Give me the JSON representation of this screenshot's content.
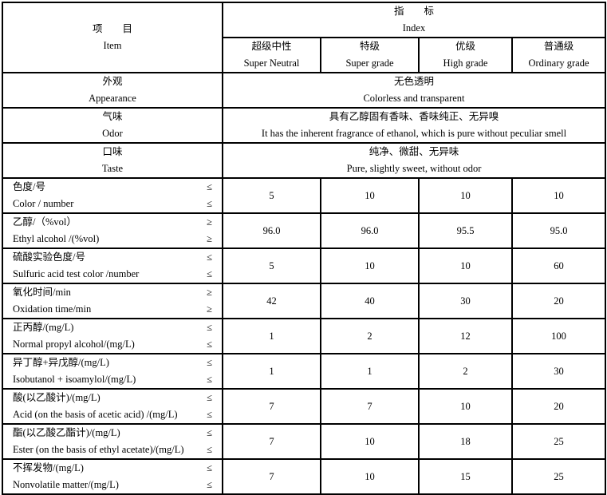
{
  "header": {
    "item_cn": "项　　目",
    "item_en": "Item",
    "index_cn": "指　　标",
    "index_en": "Index",
    "grades": [
      {
        "cn": "超级中性",
        "en": "Super Neutral"
      },
      {
        "cn": "特级",
        "en": "Super grade"
      },
      {
        "cn": "优级",
        "en": "High grade"
      },
      {
        "cn": "普通级",
        "en": "Ordinary grade"
      }
    ]
  },
  "merged_rows": [
    {
      "cn": "外观",
      "en": "Appearance",
      "value_cn": "无色透明",
      "value_en": "Colorless and transparent"
    },
    {
      "cn": "气味",
      "en": "Odor",
      "value_cn": "具有乙醇固有香味、香味纯正、无异嗅",
      "value_en": "It has the inherent fragrance of ethanol, which is pure without peculiar smell"
    },
    {
      "cn": "口味",
      "en": "Taste",
      "value_cn": "纯净、微甜、无异味",
      "value_en": "Pure, slightly sweet, without odor"
    }
  ],
  "rows": [
    {
      "cn": "色度/号",
      "en": "Color / number",
      "op": "≤",
      "values": [
        "5",
        "10",
        "10",
        "10"
      ]
    },
    {
      "cn": "乙醇/（%vol）",
      "en": "Ethyl alcohol /(%vol)",
      "op": "≥",
      "values": [
        "96.0",
        "96.0",
        "95.5",
        "95.0"
      ]
    },
    {
      "cn": "硫酸实验色度/号",
      "en": "Sulfuric acid test color /number",
      "op": "≤",
      "values": [
        "5",
        "10",
        "10",
        "60"
      ]
    },
    {
      "cn": "氧化时间/min",
      "en": "Oxidation time/min",
      "op": "≥",
      "values": [
        "42",
        "40",
        "30",
        "20"
      ]
    },
    {
      "cn": "正丙醇/(mg/L)",
      "en": "Normal propyl alcohol/(mg/L)",
      "op": "≤",
      "values": [
        "1",
        "2",
        "12",
        "100"
      ]
    },
    {
      "cn": "异丁醇+异戊醇/(mg/L)",
      "en": "Isobutanol + isoamylol/(mg/L)",
      "op": "≤",
      "values": [
        "1",
        "1",
        "2",
        "30"
      ]
    },
    {
      "cn": "酸(以乙酸计)/(mg/L)",
      "en": "Acid (on the basis of acetic acid) /(mg/L)",
      "op": "≤",
      "values": [
        "7",
        "7",
        "10",
        "20"
      ]
    },
    {
      "cn": "酯(以乙酸乙酯计)/(mg/L)",
      "en": "Ester (on the basis of ethyl acetate)/(mg/L)",
      "op": "≤",
      "values": [
        "7",
        "10",
        "18",
        "25"
      ]
    },
    {
      "cn": "不挥发物/(mg/L)",
      "en": "Nonvolatile matter/(mg/L)",
      "op": "≤",
      "values": [
        "7",
        "10",
        "15",
        "25"
      ]
    }
  ]
}
